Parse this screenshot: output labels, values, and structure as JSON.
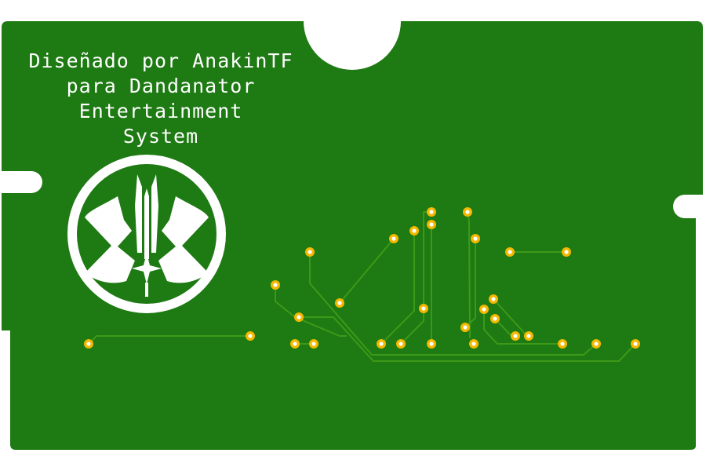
{
  "board": {
    "colors": {
      "background": "#ffffff",
      "substrate": "#1e7a12",
      "trace": "#3d9a18",
      "pad_ring": "#f5b800",
      "pad_hole": "#ffffff",
      "silkscreen": "#ffffff"
    },
    "silkscreen_text": [
      "Diseñado por AnakinTF",
      "para Dandanator",
      "Entertainment",
      "System"
    ],
    "logo": {
      "name": "dandanator-emblem"
    }
  }
}
